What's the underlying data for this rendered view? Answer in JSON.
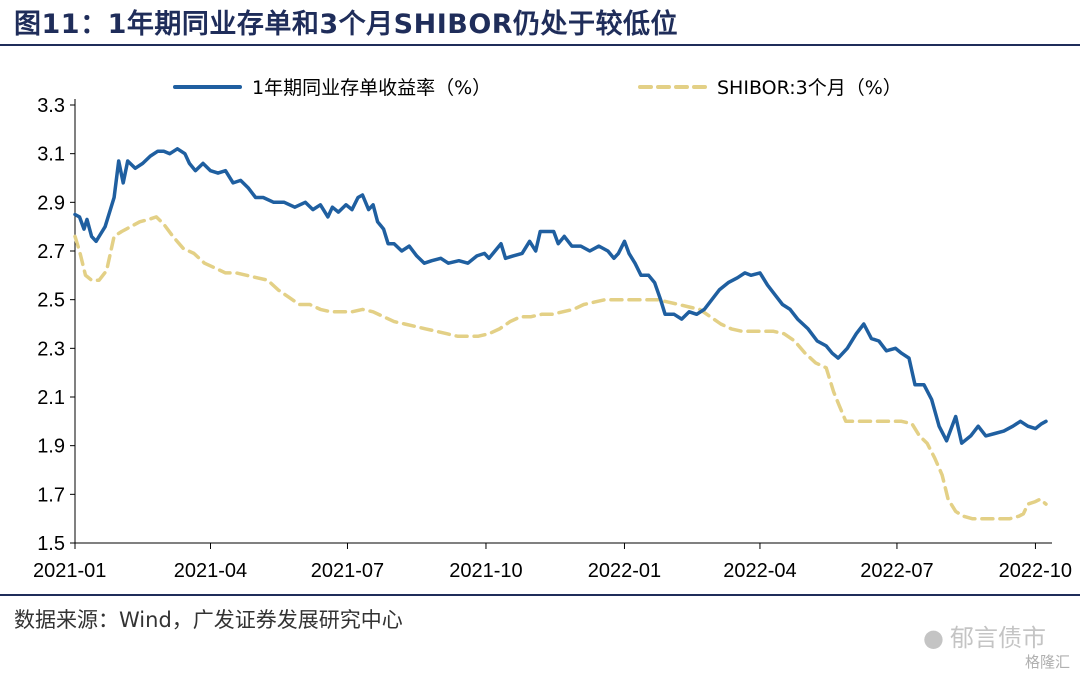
{
  "header": {
    "title": "图11：1年期同业存单和3个月SHIBOR仍处于较低位"
  },
  "footer": {
    "source": "数据来源：Wind，广发证券发展研究中心",
    "watermark": "郁言债市",
    "watermark_sub": "格隆汇"
  },
  "chart_data": {
    "type": "line",
    "x_ticks": [
      "2021-01",
      "2021-04",
      "2021-07",
      "2021-10",
      "2022-01",
      "2022-04",
      "2022-07",
      "2022-10"
    ],
    "y_ticks": [
      "3.3",
      "3.1",
      "2.9",
      "2.7",
      "2.5",
      "2.3",
      "2.1",
      "1.9",
      "1.7",
      "1.5"
    ],
    "ylim": [
      1.5,
      3.3
    ],
    "xlim": [
      "2021-01-01",
      "2022-10-12"
    ],
    "grid": false,
    "legend_position": "top",
    "series": [
      {
        "name": "1年期同业存单收益率（%）",
        "color": "#1f5fa0",
        "style": "solid",
        "points": [
          [
            "2021-01-01",
            2.85
          ],
          [
            "2021-01-04",
            2.84
          ],
          [
            "2021-01-07",
            2.79
          ],
          [
            "2021-01-09",
            2.83
          ],
          [
            "2021-01-12",
            2.76
          ],
          [
            "2021-01-15",
            2.74
          ],
          [
            "2021-01-18",
            2.77
          ],
          [
            "2021-01-21",
            2.8
          ],
          [
            "2021-01-24",
            2.86
          ],
          [
            "2021-01-27",
            2.92
          ],
          [
            "2021-01-30",
            3.07
          ],
          [
            "2021-02-02",
            2.98
          ],
          [
            "2021-02-05",
            3.07
          ],
          [
            "2021-02-10",
            3.04
          ],
          [
            "2021-02-15",
            3.06
          ],
          [
            "2021-02-20",
            3.09
          ],
          [
            "2021-02-25",
            3.11
          ],
          [
            "2021-03-01",
            3.11
          ],
          [
            "2021-03-05",
            3.1
          ],
          [
            "2021-03-10",
            3.12
          ],
          [
            "2021-03-15",
            3.1
          ],
          [
            "2021-03-18",
            3.06
          ],
          [
            "2021-03-22",
            3.03
          ],
          [
            "2021-03-27",
            3.06
          ],
          [
            "2021-04-01",
            3.03
          ],
          [
            "2021-04-06",
            3.02
          ],
          [
            "2021-04-11",
            3.03
          ],
          [
            "2021-04-16",
            2.98
          ],
          [
            "2021-04-21",
            2.99
          ],
          [
            "2021-04-26",
            2.96
          ],
          [
            "2021-05-01",
            2.92
          ],
          [
            "2021-05-06",
            2.92
          ],
          [
            "2021-05-13",
            2.9
          ],
          [
            "2021-05-20",
            2.9
          ],
          [
            "2021-05-27",
            2.88
          ],
          [
            "2021-06-03",
            2.9
          ],
          [
            "2021-06-08",
            2.87
          ],
          [
            "2021-06-13",
            2.89
          ],
          [
            "2021-06-18",
            2.84
          ],
          [
            "2021-06-21",
            2.88
          ],
          [
            "2021-06-25",
            2.86
          ],
          [
            "2021-06-30",
            2.89
          ],
          [
            "2021-07-04",
            2.87
          ],
          [
            "2021-07-08",
            2.92
          ],
          [
            "2021-07-11",
            2.93
          ],
          [
            "2021-07-15",
            2.87
          ],
          [
            "2021-07-18",
            2.89
          ],
          [
            "2021-07-21",
            2.82
          ],
          [
            "2021-07-25",
            2.79
          ],
          [
            "2021-07-28",
            2.73
          ],
          [
            "2021-08-01",
            2.73
          ],
          [
            "2021-08-06",
            2.7
          ],
          [
            "2021-08-11",
            2.72
          ],
          [
            "2021-08-16",
            2.68
          ],
          [
            "2021-08-21",
            2.65
          ],
          [
            "2021-08-26",
            2.66
          ],
          [
            "2021-09-01",
            2.67
          ],
          [
            "2021-09-06",
            2.65
          ],
          [
            "2021-09-13",
            2.66
          ],
          [
            "2021-09-19",
            2.65
          ],
          [
            "2021-09-25",
            2.68
          ],
          [
            "2021-09-30",
            2.69
          ],
          [
            "2021-10-03",
            2.67
          ],
          [
            "2021-10-07",
            2.7
          ],
          [
            "2021-10-11",
            2.73
          ],
          [
            "2021-10-14",
            2.67
          ],
          [
            "2021-10-19",
            2.68
          ],
          [
            "2021-10-25",
            2.69
          ],
          [
            "2021-10-30",
            2.74
          ],
          [
            "2021-11-03",
            2.7
          ],
          [
            "2021-11-06",
            2.78
          ],
          [
            "2021-11-11",
            2.78
          ],
          [
            "2021-11-15",
            2.78
          ],
          [
            "2021-11-18",
            2.73
          ],
          [
            "2021-11-22",
            2.76
          ],
          [
            "2021-11-27",
            2.72
          ],
          [
            "2021-12-03",
            2.72
          ],
          [
            "2021-12-09",
            2.7
          ],
          [
            "2021-12-15",
            2.72
          ],
          [
            "2021-12-21",
            2.7
          ],
          [
            "2021-12-25",
            2.67
          ],
          [
            "2021-12-28",
            2.69
          ],
          [
            "2022-01-01",
            2.74
          ],
          [
            "2022-01-04",
            2.69
          ],
          [
            "2022-01-08",
            2.65
          ],
          [
            "2022-01-12",
            2.6
          ],
          [
            "2022-01-17",
            2.6
          ],
          [
            "2022-01-21",
            2.57
          ],
          [
            "2022-01-25",
            2.5
          ],
          [
            "2022-01-28",
            2.44
          ],
          [
            "2022-02-03",
            2.44
          ],
          [
            "2022-02-08",
            2.42
          ],
          [
            "2022-02-13",
            2.45
          ],
          [
            "2022-02-18",
            2.44
          ],
          [
            "2022-02-23",
            2.46
          ],
          [
            "2022-02-28",
            2.5
          ],
          [
            "2022-03-05",
            2.54
          ],
          [
            "2022-03-11",
            2.57
          ],
          [
            "2022-03-17",
            2.59
          ],
          [
            "2022-03-22",
            2.61
          ],
          [
            "2022-03-26",
            2.6
          ],
          [
            "2022-04-01",
            2.61
          ],
          [
            "2022-04-06",
            2.56
          ],
          [
            "2022-04-11",
            2.52
          ],
          [
            "2022-04-16",
            2.48
          ],
          [
            "2022-04-21",
            2.46
          ],
          [
            "2022-04-26",
            2.42
          ],
          [
            "2022-05-03",
            2.38
          ],
          [
            "2022-05-09",
            2.33
          ],
          [
            "2022-05-15",
            2.31
          ],
          [
            "2022-05-19",
            2.28
          ],
          [
            "2022-05-23",
            2.26
          ],
          [
            "2022-05-29",
            2.3
          ],
          [
            "2022-06-04",
            2.36
          ],
          [
            "2022-06-09",
            2.4
          ],
          [
            "2022-06-14",
            2.34
          ],
          [
            "2022-06-19",
            2.33
          ],
          [
            "2022-06-24",
            2.29
          ],
          [
            "2022-06-30",
            2.3
          ],
          [
            "2022-07-04",
            2.28
          ],
          [
            "2022-07-09",
            2.26
          ],
          [
            "2022-07-13",
            2.15
          ],
          [
            "2022-07-19",
            2.15
          ],
          [
            "2022-07-24",
            2.09
          ],
          [
            "2022-07-29",
            1.98
          ],
          [
            "2022-08-03",
            1.92
          ],
          [
            "2022-08-09",
            2.02
          ],
          [
            "2022-08-13",
            1.91
          ],
          [
            "2022-08-19",
            1.94
          ],
          [
            "2022-08-24",
            1.98
          ],
          [
            "2022-08-29",
            1.94
          ],
          [
            "2022-09-04",
            1.95
          ],
          [
            "2022-09-10",
            1.96
          ],
          [
            "2022-09-16",
            1.98
          ],
          [
            "2022-09-21",
            2.0
          ],
          [
            "2022-09-26",
            1.98
          ],
          [
            "2022-10-01",
            1.97
          ],
          [
            "2022-10-05",
            1.99
          ],
          [
            "2022-10-08",
            2.0
          ]
        ]
      },
      {
        "name": "SHIBOR:3个月（%）",
        "color": "#e3d086",
        "style": "dashed",
        "points": [
          [
            "2021-01-01",
            2.76
          ],
          [
            "2021-01-04",
            2.7
          ],
          [
            "2021-01-08",
            2.6
          ],
          [
            "2021-01-12",
            2.58
          ],
          [
            "2021-01-17",
            2.58
          ],
          [
            "2021-01-22",
            2.62
          ],
          [
            "2021-01-27",
            2.76
          ],
          [
            "2021-02-01",
            2.78
          ],
          [
            "2021-02-07",
            2.8
          ],
          [
            "2021-02-13",
            2.82
          ],
          [
            "2021-02-19",
            2.83
          ],
          [
            "2021-02-24",
            2.84
          ],
          [
            "2021-03-01",
            2.81
          ],
          [
            "2021-03-07",
            2.76
          ],
          [
            "2021-03-14",
            2.71
          ],
          [
            "2021-03-21",
            2.69
          ],
          [
            "2021-03-28",
            2.65
          ],
          [
            "2021-04-04",
            2.63
          ],
          [
            "2021-04-11",
            2.61
          ],
          [
            "2021-04-18",
            2.61
          ],
          [
            "2021-04-25",
            2.6
          ],
          [
            "2021-05-02",
            2.59
          ],
          [
            "2021-05-09",
            2.58
          ],
          [
            "2021-05-16",
            2.54
          ],
          [
            "2021-05-23",
            2.51
          ],
          [
            "2021-05-30",
            2.48
          ],
          [
            "2021-06-06",
            2.48
          ],
          [
            "2021-06-13",
            2.46
          ],
          [
            "2021-06-20",
            2.45
          ],
          [
            "2021-06-27",
            2.45
          ],
          [
            "2021-07-04",
            2.45
          ],
          [
            "2021-07-11",
            2.46
          ],
          [
            "2021-07-18",
            2.45
          ],
          [
            "2021-07-25",
            2.43
          ],
          [
            "2021-08-01",
            2.41
          ],
          [
            "2021-08-08",
            2.4
          ],
          [
            "2021-08-15",
            2.39
          ],
          [
            "2021-08-22",
            2.38
          ],
          [
            "2021-08-29",
            2.37
          ],
          [
            "2021-09-05",
            2.36
          ],
          [
            "2021-09-12",
            2.35
          ],
          [
            "2021-09-19",
            2.35
          ],
          [
            "2021-09-26",
            2.35
          ],
          [
            "2021-10-03",
            2.36
          ],
          [
            "2021-10-10",
            2.38
          ],
          [
            "2021-10-17",
            2.41
          ],
          [
            "2021-10-24",
            2.43
          ],
          [
            "2021-10-31",
            2.43
          ],
          [
            "2021-11-07",
            2.44
          ],
          [
            "2021-11-14",
            2.44
          ],
          [
            "2021-11-21",
            2.45
          ],
          [
            "2021-11-28",
            2.46
          ],
          [
            "2021-12-05",
            2.48
          ],
          [
            "2021-12-12",
            2.49
          ],
          [
            "2021-12-19",
            2.5
          ],
          [
            "2021-12-26",
            2.5
          ],
          [
            "2022-01-02",
            2.5
          ],
          [
            "2022-01-09",
            2.5
          ],
          [
            "2022-01-16",
            2.5
          ],
          [
            "2022-01-23",
            2.5
          ],
          [
            "2022-01-30",
            2.49
          ],
          [
            "2022-02-06",
            2.48
          ],
          [
            "2022-02-13",
            2.47
          ],
          [
            "2022-02-20",
            2.46
          ],
          [
            "2022-02-27",
            2.43
          ],
          [
            "2022-03-06",
            2.4
          ],
          [
            "2022-03-13",
            2.38
          ],
          [
            "2022-03-20",
            2.37
          ],
          [
            "2022-03-27",
            2.37
          ],
          [
            "2022-04-03",
            2.37
          ],
          [
            "2022-04-10",
            2.37
          ],
          [
            "2022-04-17",
            2.36
          ],
          [
            "2022-04-24",
            2.33
          ],
          [
            "2022-05-01",
            2.28
          ],
          [
            "2022-05-08",
            2.24
          ],
          [
            "2022-05-15",
            2.22
          ],
          [
            "2022-05-20",
            2.12
          ],
          [
            "2022-05-24",
            2.06
          ],
          [
            "2022-05-28",
            2.0
          ],
          [
            "2022-06-05",
            2.0
          ],
          [
            "2022-06-15",
            2.0
          ],
          [
            "2022-06-25",
            2.0
          ],
          [
            "2022-07-04",
            2.0
          ],
          [
            "2022-07-11",
            1.99
          ],
          [
            "2022-07-16",
            1.94
          ],
          [
            "2022-07-21",
            1.91
          ],
          [
            "2022-07-26",
            1.85
          ],
          [
            "2022-07-31",
            1.78
          ],
          [
            "2022-08-04",
            1.68
          ],
          [
            "2022-08-09",
            1.63
          ],
          [
            "2022-08-14",
            1.61
          ],
          [
            "2022-08-20",
            1.6
          ],
          [
            "2022-08-27",
            1.6
          ],
          [
            "2022-09-05",
            1.6
          ],
          [
            "2022-09-14",
            1.6
          ],
          [
            "2022-09-20",
            1.61
          ],
          [
            "2022-09-23",
            1.62
          ],
          [
            "2022-09-26",
            1.66
          ],
          [
            "2022-10-01",
            1.67
          ],
          [
            "2022-10-04",
            1.68
          ],
          [
            "2022-10-08",
            1.66
          ]
        ]
      }
    ]
  }
}
